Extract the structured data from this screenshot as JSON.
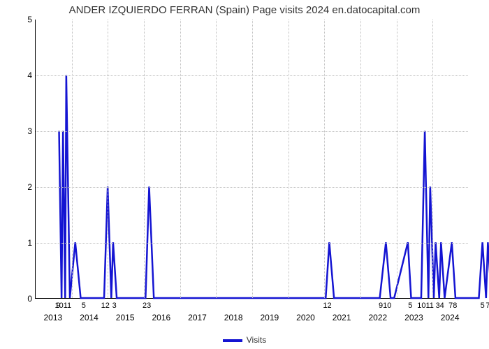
{
  "title": "ANDER IZQUIERDO FERRAN (Spain) Page visits 2024 en.datocapital.com",
  "legend_label": "Visits",
  "colors": {
    "line": "#1414d2",
    "grid": "#bfbfbf",
    "axis": "#000000",
    "bg": "#ffffff",
    "text": "#333333"
  },
  "chart": {
    "type": "line",
    "ylim": [
      0,
      5
    ],
    "ytick_step": 1,
    "line_width": 2.5,
    "x_years": [
      2013,
      2014,
      2015,
      2016,
      2017,
      2018,
      2019,
      2020,
      2021,
      2022,
      2023,
      2024
    ],
    "x_months_per_year": 12,
    "data": [
      {
        "x": 0.65,
        "y": 3
      },
      {
        "x": 0.72,
        "y": 0
      },
      {
        "x": 0.76,
        "y": 3
      },
      {
        "x": 0.82,
        "y": 0
      },
      {
        "x": 0.85,
        "y": 4
      },
      {
        "x": 0.95,
        "y": 0
      },
      {
        "x": 1.1,
        "y": 1
      },
      {
        "x": 1.25,
        "y": 0
      },
      {
        "x": 1.45,
        "y": 0
      },
      {
        "x": 1.9,
        "y": 0
      },
      {
        "x": 2.0,
        "y": 2
      },
      {
        "x": 2.1,
        "y": 0
      },
      {
        "x": 2.15,
        "y": 1
      },
      {
        "x": 2.25,
        "y": 0
      },
      {
        "x": 2.3,
        "y": 0
      },
      {
        "x": 3.05,
        "y": 0
      },
      {
        "x": 3.15,
        "y": 2
      },
      {
        "x": 3.28,
        "y": 0
      },
      {
        "x": 3.9,
        "y": 0
      },
      {
        "x": 8.05,
        "y": 0
      },
      {
        "x": 8.15,
        "y": 1
      },
      {
        "x": 8.28,
        "y": 0
      },
      {
        "x": 9.55,
        "y": 0
      },
      {
        "x": 9.72,
        "y": 1
      },
      {
        "x": 9.85,
        "y": 0
      },
      {
        "x": 9.95,
        "y": 0
      },
      {
        "x": 10.33,
        "y": 1
      },
      {
        "x": 10.42,
        "y": 0
      },
      {
        "x": 10.7,
        "y": 0
      },
      {
        "x": 10.8,
        "y": 3
      },
      {
        "x": 10.9,
        "y": 0
      },
      {
        "x": 10.95,
        "y": 2
      },
      {
        "x": 11.05,
        "y": 0
      },
      {
        "x": 11.1,
        "y": 1
      },
      {
        "x": 11.2,
        "y": 0
      },
      {
        "x": 11.25,
        "y": 1
      },
      {
        "x": 11.35,
        "y": 0
      },
      {
        "x": 11.55,
        "y": 1
      },
      {
        "x": 11.65,
        "y": 0
      },
      {
        "x": 12.3,
        "y": 0
      },
      {
        "x": 12.4,
        "y": 1
      },
      {
        "x": 12.5,
        "y": 0
      },
      {
        "x": 12.55,
        "y": 1
      },
      {
        "x": 12.65,
        "y": 0
      }
    ],
    "xtick_top": [
      {
        "x": 0.65,
        "t": "9"
      },
      {
        "x": 0.78,
        "t": "1011"
      },
      {
        "x": 1.35,
        "t": "5"
      },
      {
        "x": 1.95,
        "t": "12"
      },
      {
        "x": 2.2,
        "t": "3"
      },
      {
        "x": 3.1,
        "t": "23"
      },
      {
        "x": 8.1,
        "t": "12"
      },
      {
        "x": 9.7,
        "t": "910"
      },
      {
        "x": 10.4,
        "t": "5"
      },
      {
        "x": 10.82,
        "t": "1011"
      },
      {
        "x": 11.22,
        "t": "34"
      },
      {
        "x": 11.58,
        "t": "78"
      },
      {
        "x": 12.4,
        "t": "5"
      },
      {
        "x": 12.55,
        "t": "7"
      }
    ]
  }
}
